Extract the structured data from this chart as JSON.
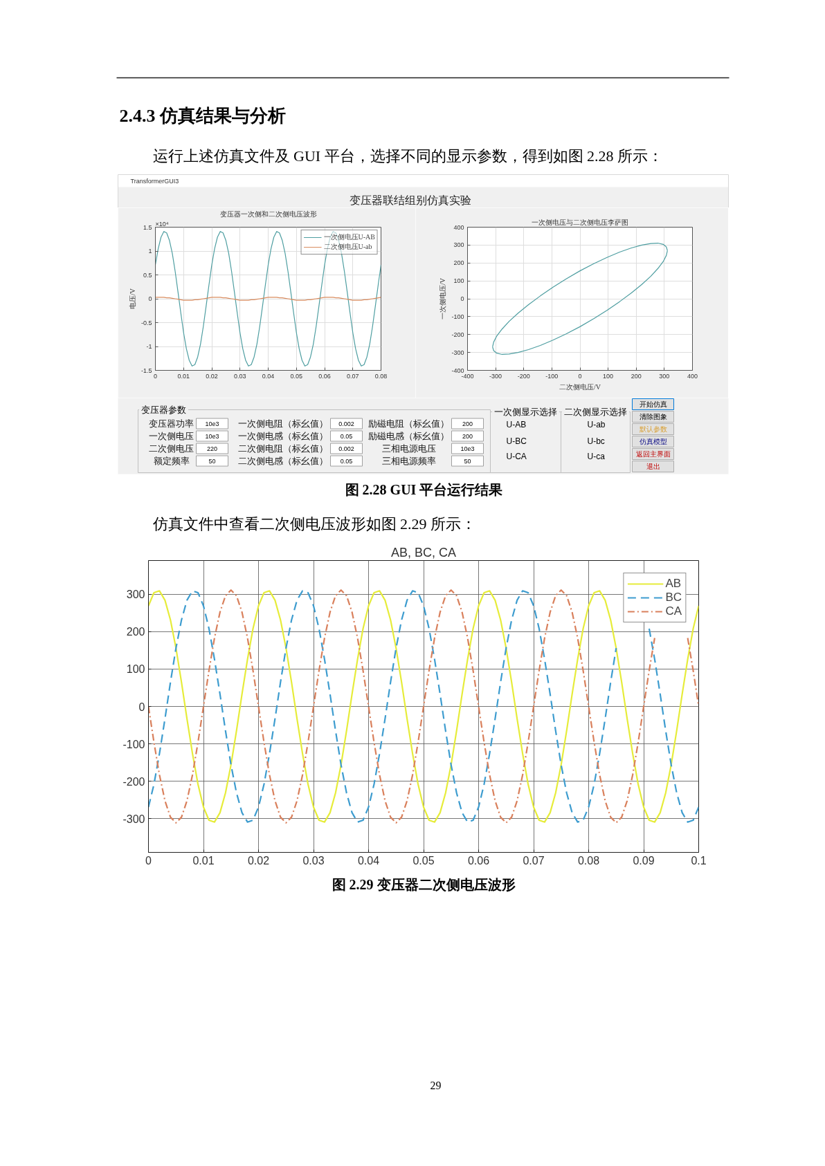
{
  "chart_data": [
    {
      "type": "other",
      "title": "2.4.3 仿真结果与分析",
      "annotations": [
        "运行上述仿真文件及 GUI 平台，选择不同的显示参数，得到如图 2.28 所示：",
        "TransformerGUI3",
        "变压器联结组别仿真实验"
      ]
    },
    {
      "type": "line",
      "title": "变压器一次侧和二次侧电压波形",
      "ylabel": "电压/V",
      "annotations": [
        "×10⁴"
      ],
      "grid": true,
      "legend": "top right",
      "x": [
        0,
        0.001,
        0.002,
        0.003,
        0.004,
        0.005,
        0.006,
        0.007,
        0.008,
        0.009,
        0.01,
        0.011,
        0.012,
        0.013,
        0.014,
        0.015,
        0.016,
        0.017,
        0.018,
        0.019,
        0.02,
        0.021,
        0.022,
        0.023,
        0.024,
        0.025,
        0.026,
        0.027,
        0.028,
        0.029,
        0.03,
        0.031,
        0.032,
        0.033,
        0.034,
        0.035,
        0.036,
        0.037,
        0.038,
        0.039,
        0.04,
        0.041,
        0.042,
        0.043,
        0.044,
        0.045,
        0.046,
        0.047,
        0.048,
        0.049,
        0.05,
        0.051,
        0.052,
        0.053,
        0.054,
        0.055,
        0.056,
        0.057,
        0.058,
        0.059,
        0.06,
        0.061,
        0.062,
        0.063,
        0.064,
        0.065,
        0.066,
        0.067,
        0.068,
        0.069,
        0.07,
        0.071,
        0.072,
        0.073,
        0.074,
        0.075,
        0.076,
        0.077,
        0.078,
        0.079,
        0.08
      ],
      "xlim": [
        0,
        0.08
      ],
      "xticks": [
        0,
        0.01,
        0.02,
        0.03,
        0.04,
        0.05,
        0.06,
        0.07,
        0.08
      ],
      "ylim": [
        -1.5,
        1.5
      ],
      "yticks": [
        -1.5,
        -1,
        -0.5,
        0,
        0.5,
        1,
        1.5
      ],
      "series": [
        {
          "name": "一次侧电压U-AB",
          "color": "#4e9ea1",
          "values": [
            0.71,
            1.05,
            1.29,
            1.41,
            1.38,
            1.22,
            0.95,
            0.58,
            0.15,
            -0.29,
            -0.71,
            -1.05,
            -1.29,
            -1.41,
            -1.38,
            -1.22,
            -0.95,
            -0.58,
            -0.15,
            0.29,
            0.71,
            1.05,
            1.29,
            1.41,
            1.38,
            1.22,
            0.95,
            0.58,
            0.15,
            -0.29,
            -0.71,
            -1.05,
            -1.29,
            -1.41,
            -1.38,
            -1.22,
            -0.95,
            -0.58,
            -0.15,
            0.29,
            0.71,
            1.05,
            1.29,
            1.41,
            1.38,
            1.22,
            0.95,
            0.58,
            0.15,
            -0.29,
            -0.71,
            -1.05,
            -1.29,
            -1.41,
            -1.38,
            -1.22,
            -0.95,
            -0.58,
            -0.15,
            0.29,
            0.71,
            1.05,
            1.29,
            1.41,
            1.38,
            1.22,
            0.95,
            0.58,
            0.15,
            -0.29,
            -0.71,
            -1.05,
            -1.29,
            -1.41,
            -1.38,
            -1.22,
            -0.95,
            -0.58,
            -0.15,
            0.29,
            0.71
          ]
        },
        {
          "name": "二次侧电压U-ab",
          "color": "#d98c5f",
          "values": [
            0.03,
            0.03,
            0.03,
            0.03,
            0.02,
            0.02,
            0.01,
            0,
            -0.01,
            -0.02,
            -0.03,
            -0.03,
            -0.03,
            -0.03,
            -0.02,
            -0.02,
            -0.01,
            0,
            0.01,
            0.02,
            0.03,
            0.03,
            0.03,
            0.03,
            0.02,
            0.02,
            0.01,
            0,
            -0.01,
            -0.02,
            -0.03,
            -0.03,
            -0.03,
            -0.03,
            -0.02,
            -0.02,
            -0.01,
            0,
            0.01,
            0.02,
            0.03,
            0.03,
            0.03,
            0.03,
            0.02,
            0.02,
            0.01,
            0,
            -0.01,
            -0.02,
            -0.03,
            -0.03,
            -0.03,
            -0.03,
            -0.02,
            -0.02,
            -0.01,
            0,
            0.01,
            0.02,
            0.03,
            0.03,
            0.03,
            0.03,
            0.02,
            0.02,
            0.01,
            0,
            -0.01,
            -0.02,
            -0.03,
            -0.03,
            -0.03,
            -0.03,
            -0.02,
            -0.02,
            -0.01,
            0,
            0.01,
            0.02,
            0.03
          ]
        }
      ]
    },
    {
      "type": "line",
      "title": "一次侧电压与二次侧电压李萨图",
      "xlabel": "二次侧电压/V",
      "ylabel": "一次侧电压/V",
      "grid": true,
      "xlim": [
        -400,
        400
      ],
      "xticks": [
        -400,
        -300,
        -200,
        -100,
        0,
        100,
        200,
        300,
        400
      ],
      "ylim": [
        -400,
        400
      ],
      "yticks": [
        -400,
        -300,
        -200,
        -100,
        0,
        100,
        200,
        300,
        400
      ],
      "series": [
        {
          "color": "#4e9ea1",
          "x": [
            -311,
            -307,
            -296,
            -277,
            -252,
            -220,
            -183,
            -141,
            -96,
            -49,
            0,
            49,
            96,
            141,
            183,
            220,
            252,
            277,
            296,
            307,
            311
          ],
          "values": [
            -269,
            -242,
            -208,
            -169,
            -126,
            -80,
            -33,
            16,
            65,
            111,
            156,
            196,
            231,
            261,
            284,
            300,
            309,
            311,
            304,
            290,
            269
          ]
        },
        {
          "color": "#4e9ea1",
          "x": [
            -311,
            -307,
            -296,
            -277,
            -252,
            -220,
            -183,
            -141,
            -96,
            -49,
            0,
            49,
            96,
            141,
            183,
            220,
            252,
            277,
            296,
            307,
            311
          ],
          "values": [
            -269,
            -290,
            -304,
            -311,
            -309,
            -300,
            -284,
            -261,
            -231,
            -196,
            -156,
            -111,
            -65,
            -16,
            33,
            80,
            126,
            169,
            208,
            242,
            269
          ]
        }
      ]
    },
    {
      "type": "other",
      "title": "变压器参数",
      "annotations": [
        "变压器功率",
        "10e3",
        "一次侧电压",
        "10e3",
        "二次侧电压",
        "220",
        "额定频率",
        "50",
        "一次侧电阻（标幺值）",
        "0.002",
        "一次侧电感（标幺值）",
        "0.05",
        "二次侧电阻（标幺值）",
        "0.002",
        "二次侧电感（标幺值）",
        "0.05",
        "励磁电阻（标幺值）",
        "200",
        "励磁电感（标幺值）",
        "200",
        "三相电源电压",
        "10e3",
        "三相电源频率",
        "50",
        "一次侧显示选择",
        "U-AB",
        "U-BC",
        "U-CA",
        "二次侧显示选择",
        "U-ab",
        "U-bc",
        "U-ca",
        "开始仿真",
        "清除图象",
        "默认参数",
        "仿真模型",
        "返回主界面",
        "退出",
        "图 2.28 GUI 平台运行结果"
      ]
    },
    {
      "type": "line",
      "title": "AB, BC, CA",
      "annotations": [
        "仿真文件中查看二次侧电压波形如图 2.29 所示：",
        "图 2.29 变压器二次侧电压波形",
        "29"
      ],
      "grid": true,
      "legend": "top right",
      "x": [
        0,
        0.001,
        0.002,
        0.003,
        0.004,
        0.005,
        0.006,
        0.007,
        0.008,
        0.009,
        0.01,
        0.011,
        0.012,
        0.013,
        0.014,
        0.015,
        0.016,
        0.017,
        0.018,
        0.019,
        0.02,
        0.021,
        0.022,
        0.023,
        0.024,
        0.025,
        0.026,
        0.027,
        0.028,
        0.029,
        0.03,
        0.031,
        0.032,
        0.033,
        0.034,
        0.035,
        0.036,
        0.037,
        0.038,
        0.039,
        0.04,
        0.041,
        0.042,
        0.043,
        0.044,
        0.045,
        0.046,
        0.047,
        0.048,
        0.049,
        0.05,
        0.051,
        0.052,
        0.053,
        0.054,
        0.055,
        0.056,
        0.057,
        0.058,
        0.059,
        0.06,
        0.061,
        0.062,
        0.063,
        0.064,
        0.065,
        0.066,
        0.067,
        0.068,
        0.069,
        0.07,
        0.071,
        0.072,
        0.073,
        0.074,
        0.075,
        0.076,
        0.077,
        0.078,
        0.079,
        0.08,
        0.081,
        0.082,
        0.083,
        0.084,
        0.085,
        0.086,
        0.087,
        0.088,
        0.089,
        0.09,
        0.091,
        0.092,
        0.093,
        0.094,
        0.095,
        0.096,
        0.097,
        0.098,
        0.099,
        0.1
      ],
      "xlim": [
        0,
        0.1
      ],
      "xticks": [
        0,
        0.01,
        0.02,
        0.03,
        0.04,
        0.05,
        0.06,
        0.07,
        0.08,
        0.09,
        0.1
      ],
      "ylim": [
        -390,
        390
      ],
      "yticks": [
        -300,
        -200,
        -100,
        0,
        100,
        200,
        300
      ],
      "series": [
        {
          "name": "AB",
          "color": "#e6ec3a",
          "line_style": "solid",
          "values": [
            269,
            304,
            309,
            284,
            231,
            156,
            65,
            -33,
            -126,
            -208,
            -269,
            -304,
            -309,
            -284,
            -231,
            -156,
            -65,
            33,
            126,
            208,
            269,
            304,
            309,
            284,
            231,
            156,
            65,
            -33,
            -126,
            -208,
            -269,
            -304,
            -309,
            -284,
            -231,
            -156,
            -65,
            33,
            126,
            208,
            269,
            304,
            309,
            284,
            231,
            156,
            65,
            -33,
            -126,
            -208,
            -269,
            -304,
            -309,
            -284,
            -231,
            -156,
            -65,
            33,
            126,
            208,
            269,
            304,
            309,
            284,
            231,
            156,
            65,
            -33,
            -126,
            -208,
            -269,
            -304,
            -309,
            -284,
            -231,
            -156,
            -65,
            33,
            126,
            208,
            269,
            304,
            309,
            284,
            231,
            156,
            65,
            -33,
            -126,
            -208,
            -269,
            -304,
            -309,
            -284,
            -231,
            -156,
            -65,
            33,
            126,
            208,
            269
          ]
        },
        {
          "name": "BC",
          "color": "#3d9ccf",
          "line_style": "dashed",
          "values": [
            -269,
            -208,
            -126,
            -33,
            65,
            156,
            231,
            284,
            309,
            304,
            269,
            208,
            126,
            33,
            -65,
            -156,
            -231,
            -284,
            -309,
            -304,
            -269,
            -208,
            -126,
            -33,
            65,
            156,
            231,
            284,
            309,
            304,
            269,
            208,
            126,
            33,
            -65,
            -156,
            -231,
            -284,
            -309,
            -304,
            -269,
            -208,
            -126,
            -33,
            65,
            156,
            231,
            284,
            309,
            304,
            269,
            208,
            126,
            33,
            -65,
            -156,
            -231,
            -284,
            -309,
            -304,
            -269,
            -208,
            -126,
            -33,
            65,
            156,
            231,
            284,
            309,
            304,
            269,
            208,
            126,
            33,
            -65,
            -156,
            -231,
            -284,
            -309,
            -304,
            -269,
            -208,
            -126,
            -33,
            65,
            156,
            null,
            null,
            null,
            null,
            null,
            208,
            126,
            33,
            -65,
            -156,
            -231,
            -284,
            -309,
            -304,
            -269
          ]
        },
        {
          "name": "CA",
          "color": "#d9805c",
          "line_style": "dashdot",
          "values": [
            0,
            -96,
            -183,
            -252,
            -296,
            -311,
            -296,
            -252,
            -183,
            -96,
            0,
            96,
            183,
            252,
            296,
            311,
            296,
            252,
            183,
            96,
            0,
            -96,
            -183,
            -252,
            -296,
            -311,
            -296,
            -252,
            -183,
            -96,
            0,
            96,
            183,
            252,
            296,
            311,
            296,
            252,
            183,
            96,
            0,
            -96,
            -183,
            -252,
            -296,
            -311,
            -296,
            -252,
            -183,
            -96,
            0,
            96,
            183,
            252,
            296,
            311,
            296,
            252,
            183,
            96,
            0,
            -96,
            -183,
            -252,
            -296,
            -311,
            -296,
            -252,
            -183,
            -96,
            0,
            96,
            183,
            252,
            296,
            311,
            296,
            252,
            183,
            96,
            0,
            -96,
            -183,
            -252,
            -296,
            -311,
            -296,
            -252,
            -183,
            -96,
            0,
            96,
            183,
            null,
            null,
            null,
            null,
            null,
            183,
            96,
            0
          ]
        }
      ]
    }
  ]
}
